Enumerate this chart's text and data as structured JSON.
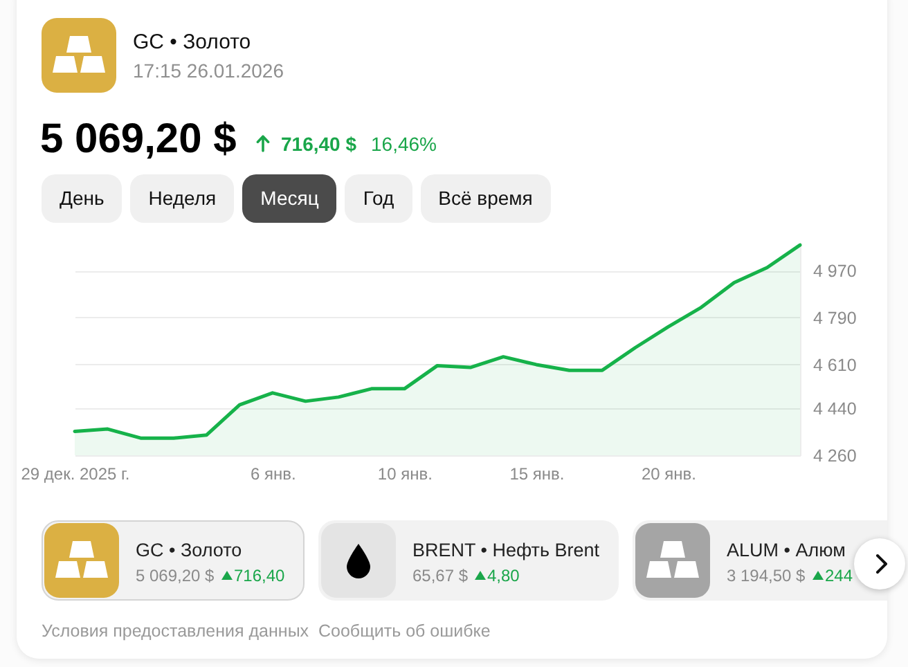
{
  "chart_data": {
    "type": "area",
    "title": "GC • Золото",
    "subtitle": "17:15 26.01.2026",
    "categories": [
      "29 дек. 2025 г.",
      null,
      null,
      null,
      null,
      null,
      "6 янв.",
      null,
      null,
      null,
      "10 янв.",
      null,
      null,
      null,
      "15 янв.",
      null,
      null,
      null,
      "20 янв.",
      null,
      null,
      null,
      null
    ],
    "values": [
      4352,
      4361,
      4326,
      4326,
      4338,
      4454,
      4500,
      4468,
      4484,
      4516,
      4516,
      4605,
      4598,
      4639,
      4609,
      4587,
      4587,
      4674,
      4754,
      4829,
      4924,
      4982,
      5069
    ],
    "color": "#16b24a",
    "ylim": [
      4260,
      5080
    ],
    "yticks": [
      {
        "value": 4260,
        "label": "4 260"
      },
      {
        "value": 4440,
        "label": "4 440"
      },
      {
        "value": 4610,
        "label": "4 610"
      },
      {
        "value": 4790,
        "label": "4 790"
      },
      {
        "value": 4970,
        "label": "4 970"
      }
    ],
    "grid": "y",
    "annotations": [
      "5 069,20 $",
      "716,40 $",
      "16,46%",
      "День",
      "Неделя",
      "Месяц",
      "Год",
      "Всё время",
      "GC • Золото",
      "5 069,20 $",
      "716,40",
      "BRENT • Нефть Brent",
      "65,67 $",
      "4,80",
      "ALUM • Алюм",
      "3 194,50 $",
      "244",
      "Условия предоставления данных",
      "Сообщить об ошибке"
    ]
  }
}
